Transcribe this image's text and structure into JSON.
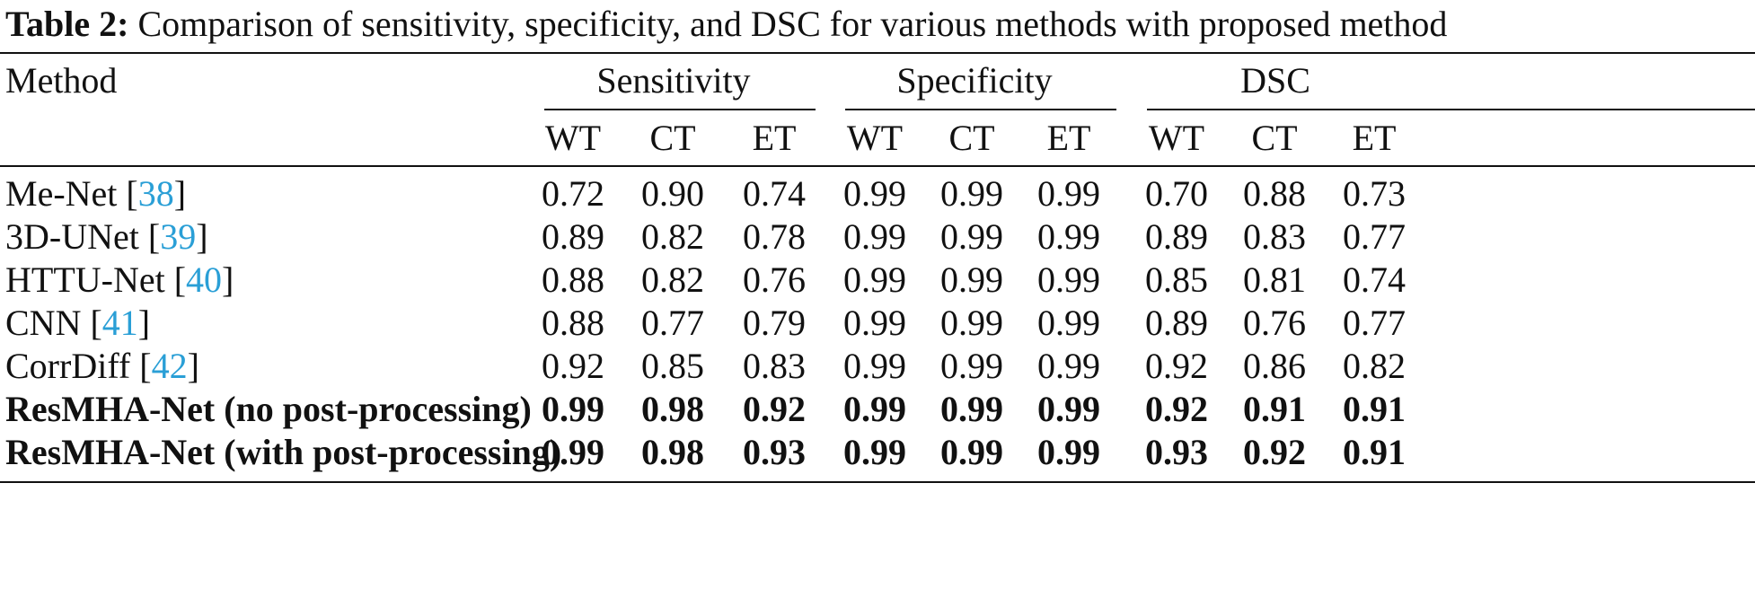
{
  "caption": {
    "label": "Table 2:",
    "text": "Comparison of sensitivity, specificity, and DSC for various methods with proposed method"
  },
  "table": {
    "method_header": "Method",
    "groups": [
      "Sensitivity",
      "Specificity",
      "DSC"
    ],
    "subheaders": [
      "WT",
      "CT",
      "ET",
      "WT",
      "CT",
      "ET",
      "WT",
      "CT",
      "ET"
    ],
    "rows": [
      {
        "name": "Me-Net",
        "ref": "38",
        "values": [
          "0.72",
          "0.90",
          "0.74",
          "0.99",
          "0.99",
          "0.99",
          "0.70",
          "0.88",
          "0.73"
        ]
      },
      {
        "name": "3D-UNet",
        "ref": "39",
        "values": [
          "0.89",
          "0.82",
          "0.78",
          "0.99",
          "0.99",
          "0.99",
          "0.89",
          "0.83",
          "0.77"
        ]
      },
      {
        "name": "HTTU-Net",
        "ref": "40",
        "values": [
          "0.88",
          "0.82",
          "0.76",
          "0.99",
          "0.99",
          "0.99",
          "0.85",
          "0.81",
          "0.74"
        ]
      },
      {
        "name": "CNN",
        "ref": "41",
        "values": [
          "0.88",
          "0.77",
          "0.79",
          "0.99",
          "0.99",
          "0.99",
          "0.89",
          "0.76",
          "0.77"
        ]
      },
      {
        "name": "CorrDiff",
        "ref": "42",
        "values": [
          "0.92",
          "0.85",
          "0.83",
          "0.99",
          "0.99",
          "0.99",
          "0.92",
          "0.86",
          "0.82"
        ]
      },
      {
        "name": "ResMHA-Net (no post-processing)",
        "ref": "",
        "bold": true,
        "values": [
          "0.99",
          "0.98",
          "0.92",
          "0.99",
          "0.99",
          "0.99",
          "0.92",
          "0.91",
          "0.91"
        ]
      },
      {
        "name": "ResMHA-Net (with post-processing)",
        "ref": "",
        "bold": true,
        "values": [
          "0.99",
          "0.98",
          "0.93",
          "0.99",
          "0.99",
          "0.99",
          "0.93",
          "0.92",
          "0.91"
        ]
      }
    ]
  },
  "colors": {
    "text": "#111111",
    "reference_link": "#2a9fd6"
  }
}
